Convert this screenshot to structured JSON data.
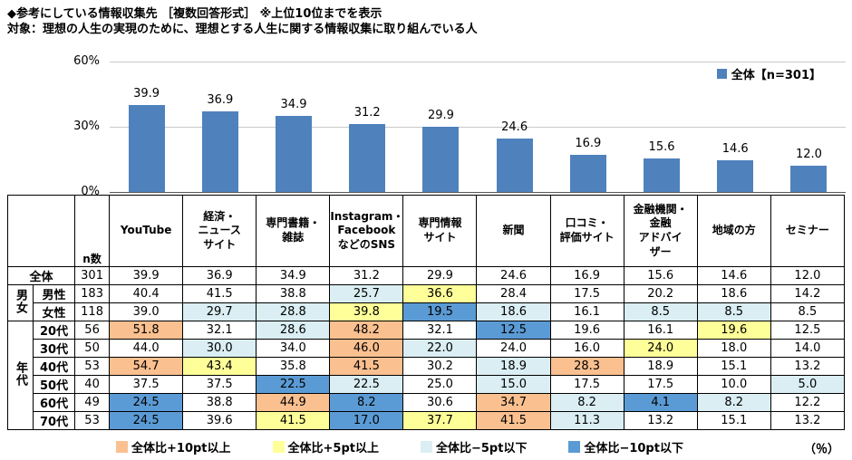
{
  "titles": {
    "line1": "◆参考にしている情報収集先 ［複数回答形式］ ※上位10位までを表示",
    "line2": "対象：理想の人生の実現のために、理想とする人生に関する情報収集に取り組んでいる人"
  },
  "colors": {
    "bar": "#4F81BD",
    "p10": "#FAC090",
    "p5": "#FFFF99",
    "m5": "#DAEEF3",
    "m10": "#5B9BD5"
  },
  "chart_data": {
    "type": "bar",
    "title": "参考にしている情報収集先",
    "series_name": "全体【n=301】",
    "categories": [
      "YouTube",
      "経済・ニュースサイト",
      "専門書籍・雑誌",
      "Instagram・FacebookなどのSNS",
      "専門情報サイト",
      "新聞",
      "口コミ・評価サイト",
      "金融機関・金融アドバイザー",
      "地域の方",
      "セミナー"
    ],
    "values": [
      39.9,
      36.9,
      34.9,
      31.2,
      29.9,
      24.6,
      16.9,
      15.6,
      14.6,
      12.0
    ],
    "ylim": [
      0,
      60
    ],
    "yticks": [
      "60%",
      "30%",
      "0%"
    ],
    "grid": true,
    "legend_position": "top-right"
  },
  "table": {
    "n_header": "n数",
    "columns": [
      "YouTube",
      "経済・\nニュース\nサイト",
      "専門書籍・\n雑誌",
      "Instagram・\nFacebook\nなどのSNS",
      "専門情報\nサイト",
      "新聞",
      "口コミ・\n評価サイト",
      "金融機関・\n金融\nアドバイ\nザー",
      "地域の方",
      "セミナー"
    ],
    "groups": [
      {
        "label": "",
        "rows": [
          {
            "label": "全体",
            "n": 301,
            "values": [
              39.9,
              36.9,
              34.9,
              31.2,
              29.9,
              24.6,
              16.9,
              15.6,
              14.6,
              12.0
            ],
            "marks": [
              "",
              "",
              "",
              "",
              "",
              "",
              "",
              "",
              "",
              ""
            ]
          }
        ]
      },
      {
        "label": "男女",
        "rows": [
          {
            "label": "男性",
            "n": 183,
            "values": [
              40.4,
              41.5,
              38.8,
              25.7,
              36.6,
              28.4,
              17.5,
              20.2,
              18.6,
              14.2
            ],
            "marks": [
              "",
              "",
              "",
              "m5",
              "p5",
              "",
              "",
              "",
              "",
              ""
            ]
          },
          {
            "label": "女性",
            "n": 118,
            "values": [
              39.0,
              29.7,
              28.8,
              39.8,
              19.5,
              18.6,
              16.1,
              8.5,
              8.5,
              8.5
            ],
            "marks": [
              "",
              "m5",
              "m5",
              "p5",
              "m10",
              "m5",
              "",
              "m5",
              "m5",
              ""
            ]
          }
        ]
      },
      {
        "label": "年代",
        "rows": [
          {
            "label": "20代",
            "n": 56,
            "values": [
              51.8,
              32.1,
              28.6,
              48.2,
              32.1,
              12.5,
              19.6,
              16.1,
              19.6,
              12.5
            ],
            "marks": [
              "p10",
              "",
              "m5",
              "p10",
              "",
              "m10",
              "",
              "",
              "p5",
              ""
            ]
          },
          {
            "label": "30代",
            "n": 50,
            "values": [
              44.0,
              30.0,
              34.0,
              46.0,
              22.0,
              24.0,
              16.0,
              24.0,
              18.0,
              14.0
            ],
            "marks": [
              "",
              "m5",
              "",
              "p10",
              "m5",
              "",
              "",
              "p5",
              "",
              ""
            ]
          },
          {
            "label": "40代",
            "n": 53,
            "values": [
              54.7,
              43.4,
              35.8,
              41.5,
              30.2,
              18.9,
              28.3,
              18.9,
              15.1,
              13.2
            ],
            "marks": [
              "p10",
              "p5",
              "",
              "p10",
              "",
              "m5",
              "p10",
              "",
              "",
              ""
            ]
          },
          {
            "label": "50代",
            "n": 40,
            "values": [
              37.5,
              37.5,
              22.5,
              22.5,
              25.0,
              15.0,
              17.5,
              17.5,
              10.0,
              5.0
            ],
            "marks": [
              "",
              "",
              "m10",
              "m5",
              "",
              "m5",
              "",
              "",
              "",
              "m5"
            ]
          },
          {
            "label": "60代",
            "n": 49,
            "values": [
              24.5,
              38.8,
              44.9,
              8.2,
              30.6,
              34.7,
              8.2,
              4.1,
              8.2,
              12.2
            ],
            "marks": [
              "m10",
              "",
              "p10",
              "m10",
              "",
              "p10",
              "m5",
              "m10",
              "m5",
              ""
            ]
          },
          {
            "label": "70代",
            "n": 53,
            "values": [
              24.5,
              39.6,
              41.5,
              17.0,
              37.7,
              41.5,
              11.3,
              13.2,
              15.1,
              13.2
            ],
            "marks": [
              "m10",
              "",
              "p5",
              "m10",
              "p5",
              "p10",
              "m5",
              "",
              "",
              ""
            ]
          }
        ]
      }
    ]
  },
  "bottom_legend": {
    "items": [
      {
        "label": "全体比+10pt以上",
        "key": "p10"
      },
      {
        "label": "全体比+5pt以上",
        "key": "p5"
      },
      {
        "label": "全体比−5pt以下",
        "key": "m5"
      },
      {
        "label": "全体比−10pt以下",
        "key": "m10"
      }
    ],
    "unit": "（％）"
  }
}
